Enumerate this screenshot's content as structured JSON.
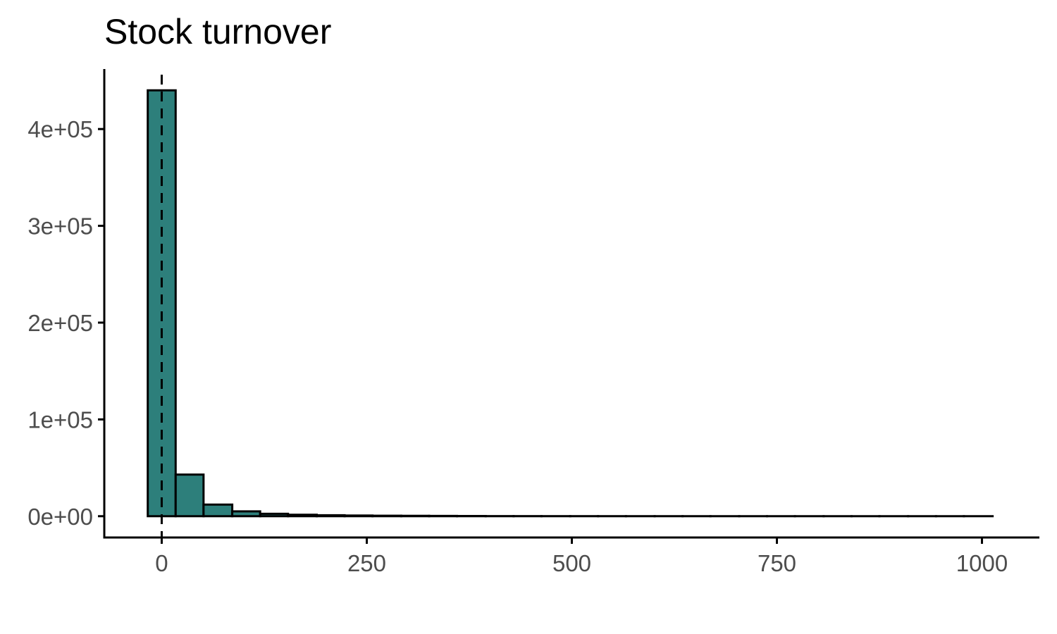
{
  "chart_data": {
    "type": "bar",
    "title": "Stock turnover",
    "xlabel": "",
    "ylabel": "",
    "xlim": [
      -70,
      1070
    ],
    "ylim": [
      -22000,
      462000
    ],
    "x_ticks": [
      0,
      250,
      500,
      750,
      1000
    ],
    "x_tick_labels": [
      "0",
      "250",
      "500",
      "750",
      "1000"
    ],
    "y_ticks": [
      0,
      100000,
      200000,
      300000,
      400000
    ],
    "y_tick_labels": [
      "0e+00",
      "1e+05",
      "2e+05",
      "3e+05",
      "4e+05"
    ],
    "bins": [
      {
        "x0": -17,
        "x1": 17,
        "count": 440000
      },
      {
        "x0": 17,
        "x1": 51,
        "count": 43000
      },
      {
        "x0": 51,
        "x1": 86,
        "count": 12000
      },
      {
        "x0": 86,
        "x1": 120,
        "count": 5000
      },
      {
        "x0": 120,
        "x1": 154,
        "count": 2500
      },
      {
        "x0": 154,
        "x1": 189,
        "count": 1500
      },
      {
        "x0": 189,
        "x1": 223,
        "count": 1000
      },
      {
        "x0": 223,
        "x1": 257,
        "count": 700
      },
      {
        "x0": 257,
        "x1": 292,
        "count": 500
      },
      {
        "x0": 292,
        "x1": 326,
        "count": 400
      },
      {
        "x0": 326,
        "x1": 360,
        "count": 300
      },
      {
        "x0": 360,
        "x1": 395,
        "count": 200
      },
      {
        "x0": 395,
        "x1": 429,
        "count": 100
      },
      {
        "x0": 429,
        "x1": 463,
        "count": 80
      },
      {
        "x0": 463,
        "x1": 498,
        "count": 60
      },
      {
        "x0": 498,
        "x1": 532,
        "count": 50
      },
      {
        "x0": 532,
        "x1": 566,
        "count": 40
      },
      {
        "x0": 566,
        "x1": 601,
        "count": 30
      },
      {
        "x0": 601,
        "x1": 635,
        "count": 25
      },
      {
        "x0": 635,
        "x1": 669,
        "count": 20
      },
      {
        "x0": 669,
        "x1": 704,
        "count": 15
      },
      {
        "x0": 704,
        "x1": 738,
        "count": 10
      },
      {
        "x0": 738,
        "x1": 772,
        "count": 8
      },
      {
        "x0": 772,
        "x1": 807,
        "count": 6
      },
      {
        "x0": 807,
        "x1": 841,
        "count": 5
      },
      {
        "x0": 841,
        "x1": 875,
        "count": 4
      },
      {
        "x0": 875,
        "x1": 910,
        "count": 3
      },
      {
        "x0": 910,
        "x1": 944,
        "count": 2
      },
      {
        "x0": 944,
        "x1": 978,
        "count": 2
      },
      {
        "x0": 978,
        "x1": 1013,
        "count": 1
      }
    ],
    "reference_line": {
      "x": 0,
      "style": "dashed"
    },
    "bar_fill": "#2d7f7b",
    "bar_stroke": "#000000",
    "grid": false,
    "legend": "none"
  }
}
